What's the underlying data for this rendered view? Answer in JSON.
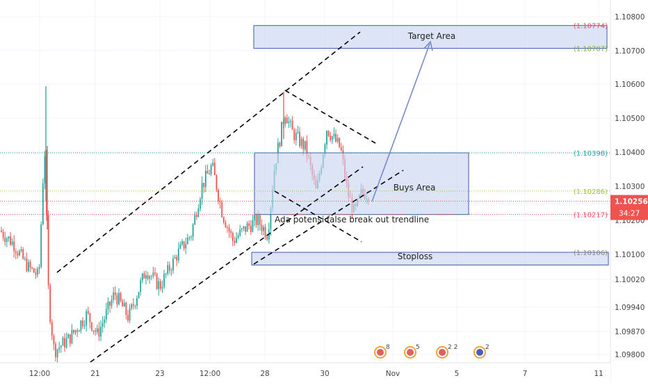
{
  "chart_data": {
    "type": "candlestick",
    "y_axis": {
      "ticks": [
        "1.09800",
        "1.09870",
        "1.09940",
        "1.10020",
        "1.10100",
        "1.10200",
        "1.10300",
        "1.10400",
        "1.10500",
        "1.10600",
        "1.10700",
        "1.10800"
      ],
      "position": "right"
    },
    "x_axis": {
      "ticks": [
        "12:00",
        "21",
        "23",
        "12:00",
        "28",
        "30",
        "Nov",
        "5",
        "7",
        "11"
      ]
    },
    "price_labels": [
      {
        "text": "(1.10774)",
        "value": 1.10774,
        "color": "#e0525c"
      },
      {
        "text": "(1.10707)",
        "value": 1.10707,
        "color": "#7cae3b"
      },
      {
        "text": "(1.10398)",
        "value": 1.10398,
        "color": "#26a69a"
      },
      {
        "text": "(1.10286)",
        "value": 1.10286,
        "color": "#9cc43a"
      },
      {
        "text": "(1.10217)",
        "value": 1.10217,
        "color": "#e0525c"
      },
      {
        "text": "(1.10106)",
        "value": 1.10106,
        "color": "#888888"
      }
    ],
    "current_price": {
      "value": "1.10256",
      "countdown": "34:27",
      "color": "#ef5350"
    },
    "zones": [
      {
        "label": "Target Area",
        "top": 1.10774,
        "bottom": 1.10707
      },
      {
        "label": "Buys Area",
        "top": 1.10398,
        "bottom": 1.10217
      },
      {
        "label": "Stoploss",
        "top": 1.10106,
        "bottom": 1.10066
      }
    ],
    "annotation": "Ada potensi false break out trendline",
    "event_badges": [
      "8",
      "5",
      "2 2",
      "2"
    ],
    "colors": {
      "up": "#26a69a",
      "down": "#ef5350",
      "zone_fill": "#c9d5ef",
      "zone_stroke": "#3f5aa6",
      "arrow": "#6f86c6"
    },
    "grid": true
  }
}
